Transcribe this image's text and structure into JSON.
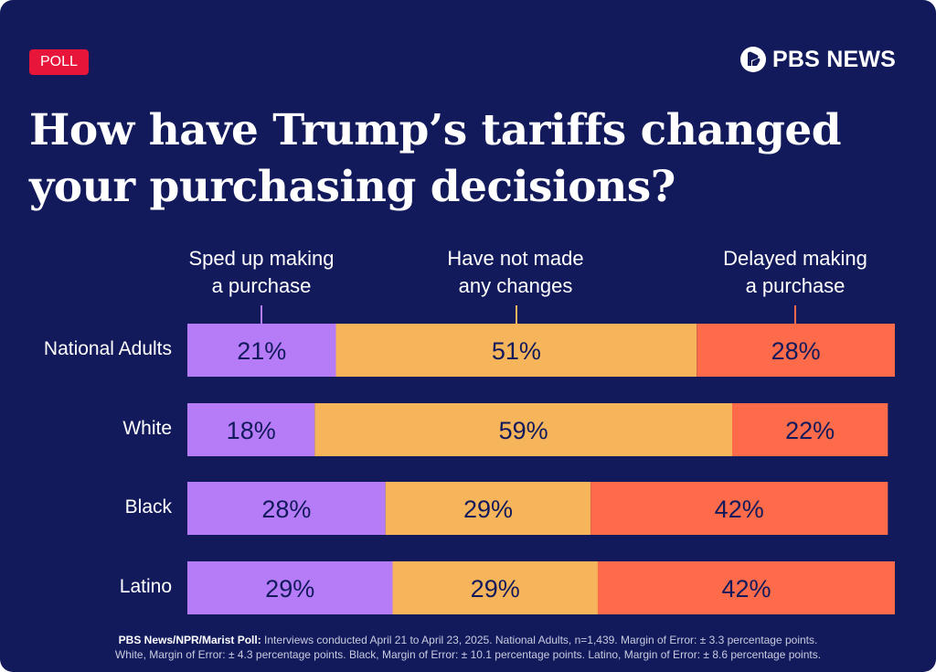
{
  "badge": "POLL",
  "brand": "PBS NEWS",
  "colors": {
    "background": "#121a5c",
    "badge": "#e8153b",
    "sped_up": "#b67cf7",
    "no_change": "#f6b55a",
    "delayed": "#fd6b4a",
    "label_text": "#121a5c"
  },
  "chart_data": {
    "type": "bar",
    "orientation": "horizontal",
    "stacked": true,
    "title": "How have Trump’s tariffs changed your purchasing decisions?",
    "categories": [
      "National Adults",
      "White",
      "Black",
      "Latino"
    ],
    "series": [
      {
        "name": "Sped up making a purchase",
        "legend_lines": [
          "Sped up making",
          "a purchase"
        ],
        "color_key": "sped_up",
        "values": [
          21,
          18,
          28,
          29
        ]
      },
      {
        "name": "Have not made any changes",
        "legend_lines": [
          "Have not made",
          "any changes"
        ],
        "color_key": "no_change",
        "values": [
          51,
          59,
          29,
          29
        ]
      },
      {
        "name": "Delayed making a purchase",
        "legend_lines": [
          "Delayed making",
          "a purchase"
        ],
        "color_key": "delayed",
        "values": [
          28,
          22,
          42,
          42
        ]
      }
    ],
    "value_suffix": "%",
    "xlim": [
      0,
      100
    ],
    "legend_position": "top",
    "grid": false
  },
  "footnote": {
    "source": "PBS News/NPR/Marist Poll:",
    "line1": "Interviews conducted April 21 to April 23, 2025. National Adults, n=1,439. Margin of Error: ± 3.3 percentage points.",
    "line2": "White, Margin of Error: ± 4.3 percentage points. Black, Margin of Error: ± 10.1 percentage points.  Latino, Margin of Error: ± 8.6 percentage points."
  }
}
